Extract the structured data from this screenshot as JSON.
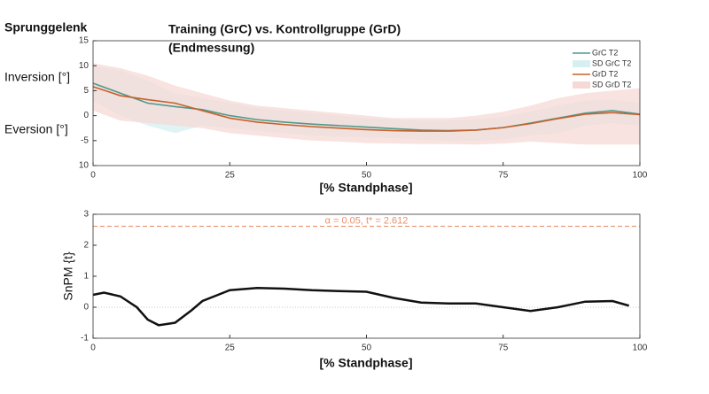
{
  "chart_data": [
    {
      "type": "line",
      "label": "Sprunggelenk",
      "title_lines": [
        "Training (GrC) vs. Kontrollgruppe (GrD)",
        "(Endmessung)"
      ],
      "ylabels": [
        "Inversion [°]",
        "Eversion [°]"
      ],
      "xlabel": "[% Standphase]",
      "x": [
        0,
        5,
        10,
        15,
        20,
        25,
        30,
        35,
        40,
        45,
        50,
        55,
        60,
        65,
        70,
        75,
        80,
        85,
        90,
        95,
        100
      ],
      "xlim": [
        0,
        100
      ],
      "xticks": [
        0,
        25,
        50,
        75,
        100
      ],
      "ylim": [
        -10,
        15
      ],
      "yticks": [
        15,
        10,
        5,
        0,
        -5,
        {
          "value": -10,
          "label": "10"
        }
      ],
      "legend": "upper right",
      "series": [
        {
          "name": "GrC T2",
          "color": "#4f9a8c",
          "values": [
            6.5,
            4.5,
            2.5,
            1.8,
            1.2,
            0,
            -0.8,
            -1.3,
            -1.7,
            -2.0,
            -2.3,
            -2.6,
            -2.9,
            -3.0,
            -2.9,
            -2.4,
            -1.5,
            -0.5,
            0.5,
            1.0,
            0.3
          ]
        },
        {
          "name": "SD GrC T2",
          "color": "#d6f0f2",
          "upper": [
            10,
            9,
            7,
            4.5,
            3.5,
            2.5,
            1.5,
            1,
            0.5,
            0,
            -0.5,
            -0.8,
            -1,
            -1,
            -0.8,
            -0.2,
            0.8,
            2,
            3,
            3.2,
            2.5
          ],
          "lower": [
            3,
            0,
            -2,
            -3.5,
            -2,
            -2.5,
            -3,
            -3.5,
            -4,
            -4.2,
            -4.3,
            -4.5,
            -4.8,
            -5,
            -5,
            -4.8,
            -4,
            -3.5,
            -2,
            -1.5,
            -2
          ]
        },
        {
          "name": "GrD T2",
          "color": "#c8602a",
          "values": [
            5.8,
            4.0,
            3.2,
            2.5,
            1.0,
            -0.5,
            -1.3,
            -1.8,
            -2.2,
            -2.5,
            -2.8,
            -3.0,
            -3.1,
            -3.1,
            -2.9,
            -2.4,
            -1.6,
            -0.6,
            0.3,
            0.6,
            0.2
          ]
        },
        {
          "name": "SD GrD T2",
          "color": "#f5d9d6",
          "upper": [
            10.5,
            9.5,
            8,
            6,
            4.5,
            3,
            2,
            1.5,
            1,
            0.5,
            0,
            -0.5,
            -0.5,
            -0.5,
            0,
            0.8,
            2,
            3.5,
            4.5,
            5,
            5.5
          ],
          "lower": [
            1,
            -1,
            -1.5,
            -2,
            -2.5,
            -3.5,
            -4,
            -4.5,
            -5,
            -5.2,
            -5.5,
            -5.6,
            -5.7,
            -5.7,
            -5.8,
            -5.6,
            -5.2,
            -5.5,
            -5.8,
            -5.8,
            -5.8
          ]
        }
      ]
    },
    {
      "type": "line",
      "ylabel": "SnPM {t}",
      "xlabel": "[% Standphase]",
      "x": [
        0,
        2,
        5,
        8,
        10,
        12,
        15,
        18,
        20,
        25,
        30,
        35,
        40,
        45,
        50,
        55,
        60,
        65,
        70,
        75,
        80,
        85,
        90,
        95,
        98
      ],
      "xlim": [
        0,
        100
      ],
      "xticks": [
        0,
        25,
        50,
        75,
        100
      ],
      "ylim": [
        -1,
        3
      ],
      "yticks": [
        -1,
        0,
        1,
        2,
        3
      ],
      "threshold": 2.612,
      "threshold_color": "#e8906a",
      "annotation": "α = 0.05, t* = 2.612",
      "series": [
        {
          "color": "#111111",
          "values": [
            0.4,
            0.47,
            0.35,
            0,
            -0.4,
            -0.58,
            -0.5,
            -0.1,
            0.2,
            0.55,
            0.62,
            0.6,
            0.55,
            0.52,
            0.5,
            0.3,
            0.15,
            0.12,
            0.12,
            0,
            -0.12,
            0,
            0.18,
            0.2,
            0.05
          ]
        }
      ]
    }
  ]
}
